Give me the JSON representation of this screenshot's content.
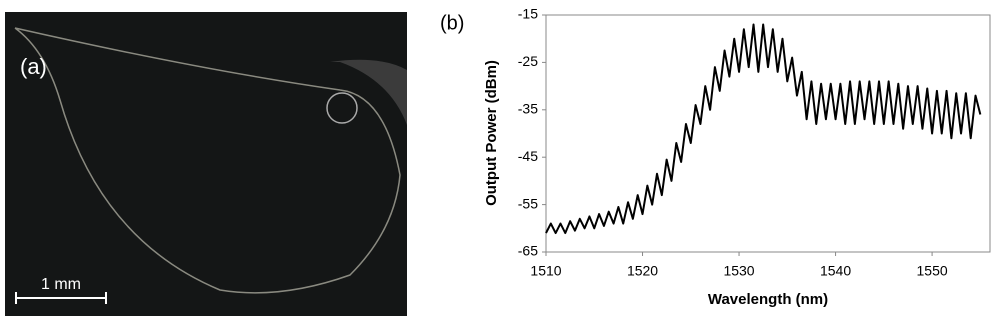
{
  "panel_a": {
    "label": "(a)",
    "scale_bar": "1 mm"
  },
  "chart_data": {
    "type": "line",
    "panel_label": "(b)",
    "x_label": "Wavelength (nm)",
    "y_label": "Output Power (dBm)",
    "xlim": [
      1510,
      1556
    ],
    "xticks": [
      1510,
      1520,
      1530,
      1540,
      1550
    ],
    "ylim": [
      -65,
      -15
    ],
    "yticks": [
      -65,
      -55,
      -45,
      -35,
      -25,
      -15
    ],
    "color": "#000000",
    "x": [
      1510,
      1510.5,
      1511,
      1511.5,
      1512,
      1512.5,
      1513,
      1513.5,
      1514,
      1514.5,
      1515,
      1515.5,
      1516,
      1516.5,
      1517,
      1517.5,
      1518,
      1518.5,
      1519,
      1519.5,
      1520,
      1520.5,
      1521,
      1521.5,
      1522,
      1522.5,
      1523,
      1523.5,
      1524,
      1524.5,
      1525,
      1525.5,
      1526,
      1526.5,
      1527,
      1527.5,
      1528,
      1528.5,
      1529,
      1529.5,
      1530,
      1530.5,
      1531,
      1531.5,
      1532,
      1532.5,
      1533,
      1533.5,
      1534,
      1534.5,
      1535,
      1535.5,
      1536,
      1536.5,
      1537,
      1537.5,
      1538,
      1538.5,
      1539,
      1539.5,
      1540,
      1540.5,
      1541,
      1541.5,
      1542,
      1542.5,
      1543,
      1543.5,
      1544,
      1544.5,
      1545,
      1545.5,
      1546,
      1546.5,
      1547,
      1547.5,
      1548,
      1548.5,
      1549,
      1549.5,
      1550,
      1550.5,
      1551,
      1551.5,
      1552,
      1552.5,
      1553,
      1553.5,
      1554,
      1554.5,
      1555
    ],
    "values": [
      -61,
      -59,
      -61,
      -59,
      -61,
      -58.5,
      -60.5,
      -58,
      -60,
      -57.5,
      -60,
      -57,
      -59.5,
      -56.5,
      -59,
      -55.5,
      -59,
      -54.5,
      -58,
      -53,
      -57,
      -51,
      -55,
      -48.5,
      -53,
      -45.5,
      -50,
      -42,
      -46,
      -38,
      -42,
      -34,
      -38,
      -30,
      -35,
      -26,
      -31,
      -22.5,
      -28,
      -20,
      -27,
      -18,
      -26,
      -17,
      -27,
      -17,
      -26,
      -18,
      -27,
      -20,
      -29,
      -24,
      -32,
      -27,
      -37,
      -29,
      -38,
      -29.5,
      -37,
      -29.5,
      -37,
      -29.5,
      -38,
      -29,
      -38,
      -29,
      -37,
      -29,
      -38,
      -29,
      -38,
      -29,
      -38,
      -29.5,
      -39,
      -30,
      -38,
      -30,
      -39,
      -30.5,
      -40,
      -31,
      -40,
      -31,
      -41,
      -31.5,
      -40,
      -31.5,
      -41,
      -32,
      -36
    ]
  }
}
